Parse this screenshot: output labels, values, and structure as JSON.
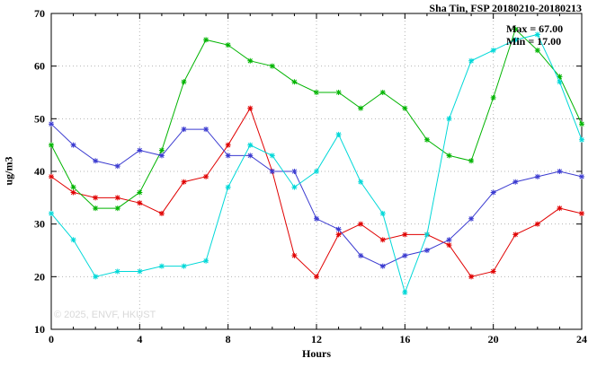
{
  "watermark": "© 2025, ENVF, HKUST",
  "chart_data": {
    "type": "line",
    "title": "Sha Tin, FSP 20180210-20180213",
    "xlabel": "Hours",
    "ylabel": "ug/m3",
    "xlim": [
      0,
      24
    ],
    "ylim": [
      10,
      70
    ],
    "xticks": [
      0,
      4,
      8,
      12,
      16,
      20,
      24
    ],
    "yticks": [
      10,
      20,
      30,
      40,
      50,
      60,
      70
    ],
    "grid": true,
    "legend_position": "none",
    "annotations": {
      "max": "Max = 67.00",
      "min": "Min = 17.00"
    },
    "x": [
      0,
      1,
      2,
      3,
      4,
      5,
      6,
      7,
      8,
      9,
      10,
      11,
      12,
      13,
      14,
      15,
      16,
      17,
      18,
      19,
      20,
      21,
      22,
      23,
      24
    ],
    "series": [
      {
        "name": "red-series",
        "color": "#e00000",
        "values": [
          39,
          36,
          35,
          35,
          34,
          32,
          38,
          39,
          45,
          52,
          40,
          24,
          20,
          28,
          30,
          27,
          28,
          28,
          26,
          20,
          21,
          28,
          30,
          33,
          32
        ]
      },
      {
        "name": "green-series",
        "color": "#00b400",
        "values": [
          45,
          37,
          33,
          33,
          36,
          44,
          57,
          65,
          64,
          61,
          60,
          57,
          55,
          55,
          52,
          55,
          52,
          46,
          43,
          42,
          54,
          67,
          63,
          58,
          49
        ]
      },
      {
        "name": "blue-series",
        "color": "#3a3ad0",
        "values": [
          49,
          45,
          42,
          41,
          44,
          43,
          48,
          48,
          43,
          43,
          40,
          40,
          31,
          29,
          24,
          22,
          24,
          25,
          27,
          31,
          36,
          38,
          39,
          40,
          39
        ]
      },
      {
        "name": "cyan-series",
        "color": "#00d8d8",
        "values": [
          32,
          27,
          20,
          21,
          21,
          22,
          22,
          23,
          37,
          45,
          43,
          37,
          40,
          47,
          38,
          32,
          17,
          28,
          50,
          61,
          63,
          65,
          66,
          57,
          46
        ]
      }
    ]
  }
}
